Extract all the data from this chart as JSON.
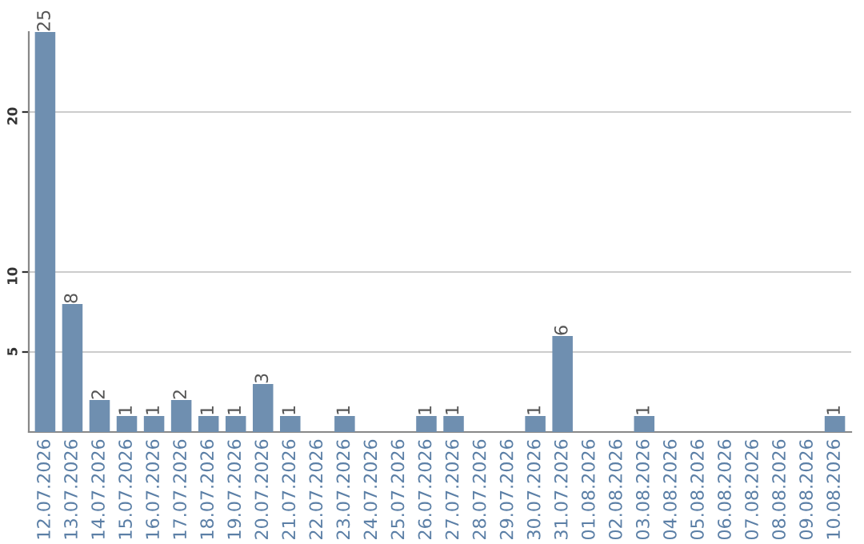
{
  "chart_data": {
    "type": "bar",
    "categories": [
      "12.07.2026",
      "13.07.2026",
      "14.07.2026",
      "15.07.2026",
      "16.07.2026",
      "17.07.2026",
      "18.07.2026",
      "19.07.2026",
      "20.07.2026",
      "21.07.2026",
      "22.07.2026",
      "23.07.2026",
      "24.07.2026",
      "25.07.2026",
      "26.07.2026",
      "27.07.2026",
      "28.07.2026",
      "29.07.2026",
      "30.07.2026",
      "31.07.2026",
      "01.08.2026",
      "02.08.2026",
      "03.08.2026",
      "04.08.2026",
      "05.08.2026",
      "06.08.2026",
      "07.08.2026",
      "08.08.2026",
      "09.08.2026",
      "10.08.2026"
    ],
    "values": [
      25,
      8,
      2,
      1,
      1,
      2,
      1,
      1,
      3,
      1,
      0,
      1,
      0,
      0,
      1,
      1,
      0,
      0,
      1,
      6,
      0,
      0,
      1,
      0,
      0,
      0,
      0,
      0,
      0,
      1
    ],
    "value_labels": [
      "25",
      "8",
      "2",
      "1",
      "1",
      "2",
      "1",
      "1",
      "3",
      "1",
      null,
      "1",
      null,
      null,
      "1",
      "1",
      null,
      null,
      "1",
      "6",
      null,
      null,
      "1",
      null,
      null,
      null,
      null,
      null,
      null,
      "1"
    ],
    "color": "#6f8fb0",
    "ylim": [
      0,
      25
    ],
    "yticks": [
      5,
      10,
      20
    ],
    "grid": "y"
  }
}
